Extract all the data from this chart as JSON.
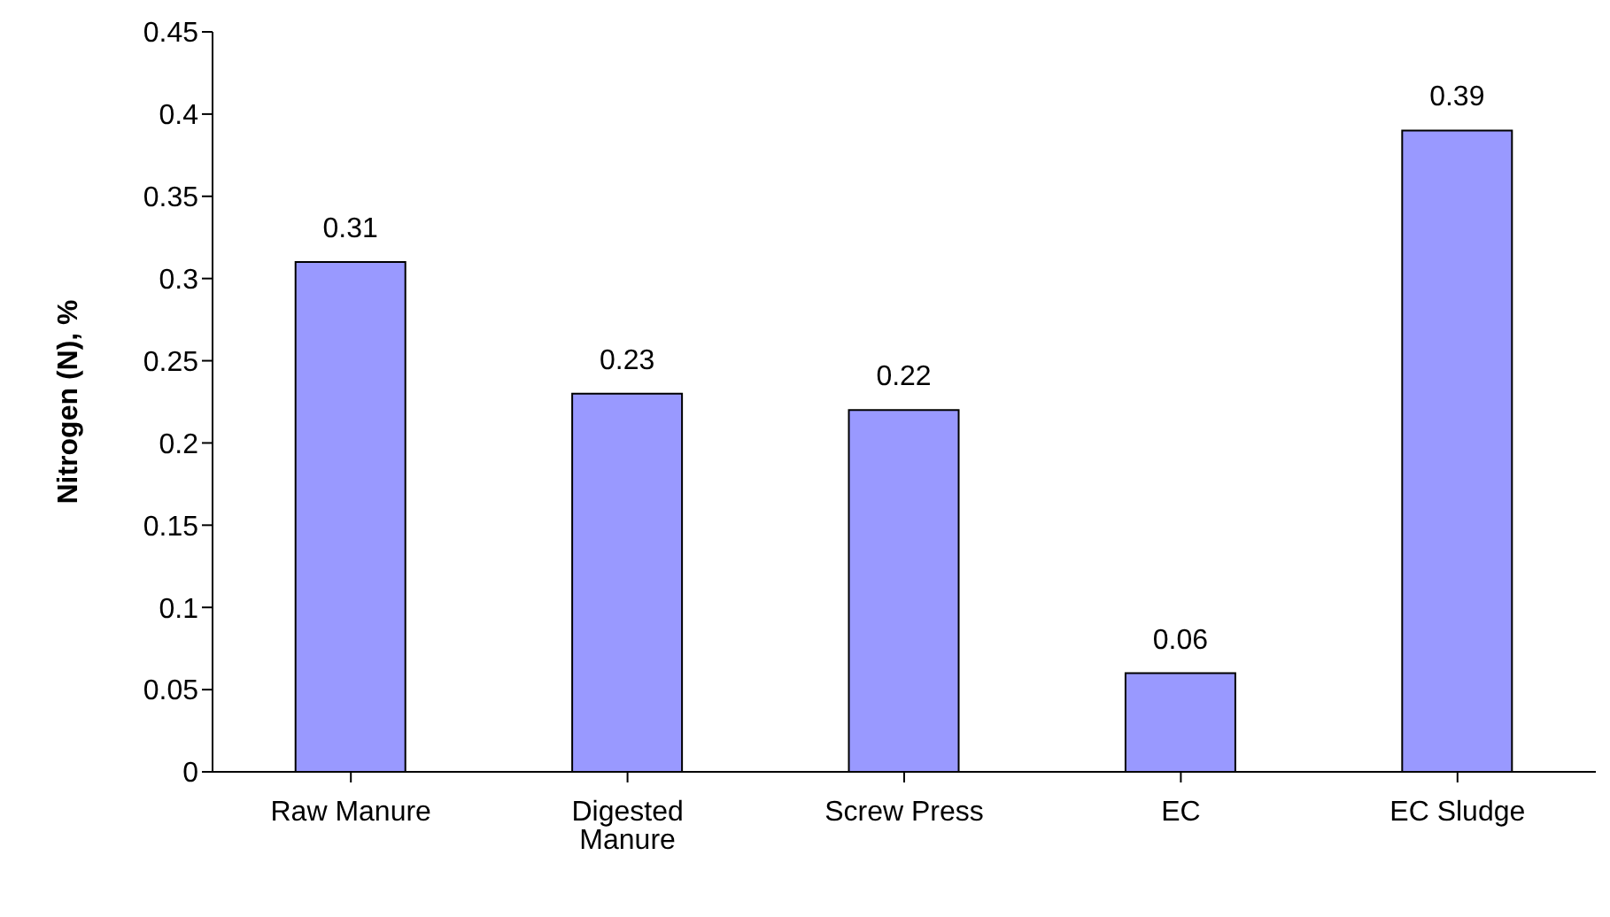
{
  "chart_data": {
    "type": "bar",
    "ylabel": "Nitrogen (N), %",
    "categories": [
      "Raw Manure",
      "Digested Manure",
      "Screw Press",
      "EC",
      "EC Sludge"
    ],
    "values": [
      0.31,
      0.23,
      0.22,
      0.06,
      0.39
    ],
    "color": "#9999ff",
    "ylim": [
      0,
      0.45
    ],
    "yticks": [
      0,
      0.05,
      0.1,
      0.15,
      0.2,
      0.25,
      0.3,
      0.35,
      0.4,
      0.45
    ],
    "data_labels": true,
    "grid": false,
    "legend": false
  }
}
